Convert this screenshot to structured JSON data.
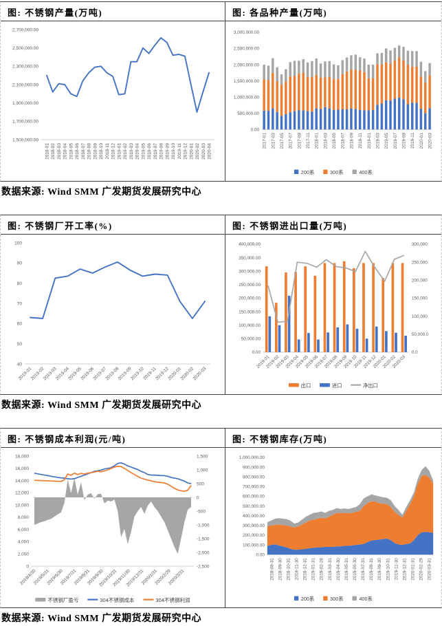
{
  "sections": [
    {
      "source": "数据来源: Wind SMM 广发期货发展研究中心"
    },
    {
      "source": "数据来源: Wind SMM 广发期货发展研究中心"
    },
    {
      "source": "数据来源: Wind SMM 广发期货发展研究中心"
    }
  ],
  "colors": {
    "blue": "#4472C4",
    "orange": "#ED7D31",
    "gray": "#A5A5A5"
  },
  "chart_data": [
    {
      "id": "production",
      "type": "line",
      "title": "图: 不锈钢产量(万吨)",
      "ylabel": "",
      "xlabel": "",
      "ylim": [
        1500000,
        2700000
      ],
      "yticks": [
        "2,700,000.00",
        "2,500,000.00",
        "2,300,000.00",
        "2,100,000.00",
        "1,900,000.00",
        "1,700,000.00",
        "1,500,000.00"
      ],
      "xticks": [
        "2018-01",
        "2018-02",
        "2018-03",
        "2018-04",
        "2018-05",
        "2018-06",
        "2018-07",
        "2018-08",
        "2018-09",
        "2018-10",
        "2018-11",
        "2018-12",
        "2019-01",
        "2019-02",
        "2019-03",
        "2019-04",
        "2019-05",
        "2019-06",
        "2019-07",
        "2019-08",
        "2019-09",
        "2019-10",
        "2019-11",
        "2019-12",
        "2020-01",
        "2020-02",
        "2020-03",
        "2020-04"
      ],
      "color": "#4472C4",
      "values": [
        2200000,
        2020000,
        2110000,
        2100000,
        2000000,
        1970000,
        2140000,
        2230000,
        2290000,
        2300000,
        2230000,
        2190000,
        1990000,
        2000000,
        2350000,
        2350000,
        2500000,
        2440000,
        2530000,
        2610000,
        2560000,
        2420000,
        2430000,
        2410000,
        2100000,
        1800000,
        2020000,
        2230000
      ]
    },
    {
      "id": "variety",
      "type": "stacked_bar",
      "title": "图: 各品种产量(万吨)",
      "ylim": [
        0,
        3000000
      ],
      "yticks": [
        "3,000,000.00",
        "2,500,000.00",
        "2,000,000.00",
        "1,500,000.00",
        "1,000,000.00",
        "500,000.00",
        "0.00"
      ],
      "categories": [
        "2017-01",
        "2017-02",
        "2017-03",
        "2017-04",
        "2017-05",
        "2017-06",
        "2017-07",
        "2017-08",
        "2017-09",
        "2017-10",
        "2017-11",
        "2017-12",
        "2018-01",
        "2018-02",
        "2018-03",
        "2018-04",
        "2018-05",
        "2018-06",
        "2018-07",
        "2018-08",
        "2018-09",
        "2018-10",
        "2018-11",
        "2018-12",
        "2019-01",
        "2019-02",
        "2019-03",
        "2019-04",
        "2019-05",
        "2019-06",
        "2019-07",
        "2019-08",
        "2019-09",
        "2019-10",
        "2019-11",
        "2019-12",
        "2020-01",
        "2020-02",
        "2020-03"
      ],
      "xticks": [
        "2017-01",
        "2017-03",
        "2017-05",
        "2017-07",
        "2017-09",
        "2017-11",
        "2018-01",
        "2018-03",
        "2018-05",
        "2018-07",
        "2018-09",
        "2018-11",
        "2019-01",
        "2019-03",
        "2019-05",
        "2019-07",
        "2019-09",
        "2019-11",
        "2020-01",
        "2020-03"
      ],
      "series": [
        {
          "name": "200系",
          "color": "#4472C4",
          "values": [
            580000,
            580000,
            650000,
            540000,
            420000,
            470000,
            530000,
            570000,
            590000,
            590000,
            570000,
            550000,
            650000,
            630000,
            690000,
            650000,
            600000,
            610000,
            620000,
            620000,
            650000,
            630000,
            600000,
            590000,
            590000,
            600000,
            760000,
            800000,
            900000,
            890000,
            950000,
            980000,
            930000,
            780000,
            830000,
            820000,
            640000,
            500000,
            660000
          ]
        },
        {
          "name": "300系",
          "color": "#ED7D31",
          "values": [
            970000,
            950000,
            1100000,
            950000,
            960000,
            1010000,
            1100000,
            1080000,
            1140000,
            1170000,
            1050000,
            1070000,
            1040000,
            970000,
            920000,
            970000,
            960000,
            950000,
            1090000,
            1170000,
            1200000,
            1210000,
            1220000,
            1180000,
            990000,
            980000,
            1250000,
            1210000,
            1170000,
            1140000,
            1180000,
            1250000,
            1200000,
            1220000,
            1110000,
            1120000,
            990000,
            950000,
            1010000
          ]
        },
        {
          "name": "400系",
          "color": "#A5A5A5",
          "values": [
            450000,
            440000,
            450000,
            430000,
            320000,
            380000,
            450000,
            470000,
            390000,
            410000,
            450000,
            490000,
            500000,
            440000,
            490000,
            490000,
            450000,
            420000,
            430000,
            430000,
            440000,
            470000,
            410000,
            420000,
            420000,
            420000,
            340000,
            350000,
            430000,
            410000,
            390000,
            360000,
            420000,
            430000,
            480000,
            480000,
            460000,
            350000,
            380000
          ]
        }
      ],
      "legend": [
        {
          "label": "200系",
          "color": "#4472C4",
          "swatch": "square"
        },
        {
          "label": "300系",
          "color": "#ED7D31",
          "swatch": "square"
        },
        {
          "label": "400系",
          "color": "#A5A5A5",
          "swatch": "square"
        }
      ]
    },
    {
      "id": "operating",
      "type": "line",
      "title": "图: 不锈钢厂开工率(%)",
      "ylim": [
        40,
        100
      ],
      "yticks": [
        "100",
        "90",
        "80",
        "70",
        "60",
        "50",
        "40"
      ],
      "xticks": [
        "2019-01",
        "2019-02",
        "2019-03",
        "2019-04",
        "2019-05",
        "2019-06",
        "2019-07",
        "2019-08",
        "2019-09",
        "2019-10",
        "2019-11",
        "2019-12",
        "2020-01",
        "2020-02",
        "2020-03"
      ],
      "color": "#4472C4",
      "values": [
        63,
        62.5,
        82.5,
        83.5,
        87,
        85,
        88,
        90.5,
        86.5,
        83.5,
        84.5,
        84,
        71,
        62.5,
        71
      ]
    },
    {
      "id": "trade",
      "type": "bar_line",
      "title": "图: 不锈钢进出口量(万吨)",
      "ylim": [
        0,
        400000
      ],
      "ylim_right": [
        0,
        300000
      ],
      "yticks": [
        "400,000.00",
        "350,000.00",
        "300,000.00",
        "250,000.00",
        "200,000.00",
        "150,000.00",
        "100,000.00",
        "50,000.00",
        "0.00"
      ],
      "yticks_right": [
        "300,000",
        "250,000",
        "200,000",
        "150,000",
        "100,000",
        "50,000.0",
        "0.0"
      ],
      "categories": [
        "2019-01",
        "2019-02",
        "2019-03",
        "2019-04",
        "2019-05",
        "2019-06",
        "2019-07",
        "2019-08",
        "2019-09",
        "2019-10",
        "2019-11",
        "2019-12",
        "2020-01",
        "2020-02",
        "2020-03"
      ],
      "xticks": [
        "2019-01",
        "2019-02",
        "2019-03",
        "2019-04",
        "2019-05",
        "2019-06",
        "2019-07",
        "2019-08",
        "2019-09",
        "2019-10",
        "2019-11",
        "2019-12",
        "2020-01",
        "2020-02",
        "2020-03"
      ],
      "bar_series": [
        {
          "name": "出口",
          "color": "#ED7D31",
          "values": [
            318000,
            183000,
            295000,
            297000,
            318000,
            283000,
            330000,
            330000,
            337000,
            311000,
            330000,
            330000,
            275000,
            330000,
            330000
          ]
        },
        {
          "name": "进口",
          "color": "#4472C4",
          "values": [
            133000,
            100000,
            209000,
            47000,
            71000,
            47000,
            73000,
            92000,
            103000,
            87000,
            50000,
            95000,
            78000,
            72000,
            61000
          ]
        }
      ],
      "line_series": {
        "name": "净出口",
        "color": "#A5A5A5",
        "axis": "right",
        "values": [
          185000,
          83000,
          86000,
          250000,
          247000,
          236000,
          257000,
          238000,
          234000,
          224000,
          280000,
          235000,
          197000,
          258000,
          269000
        ]
      },
      "legend": [
        {
          "label": "出口",
          "color": "#ED7D31",
          "swatch": "bar"
        },
        {
          "label": "进口",
          "color": "#4472C4",
          "swatch": "bar"
        },
        {
          "label": "净出口",
          "color": "#A5A5A5",
          "swatch": "line"
        }
      ]
    },
    {
      "id": "costprofit",
      "type": "area_lines",
      "title": "图: 不锈钢成本利润(元/吨)",
      "ylim": [
        0,
        18000
      ],
      "ylim_right": [
        -2500,
        1500
      ],
      "yticks": [
        "18,000",
        "16,000",
        "14,000",
        "12,000",
        "10,000",
        "8,000",
        "6,000",
        "4,000",
        "2,000",
        "0"
      ],
      "yticks_right": [
        "1,500",
        "1,000",
        "500",
        "0",
        "-500",
        "-1,000",
        "-1,500",
        "-2,000",
        "-2,500"
      ],
      "xticks": [
        "2019/4/30",
        "2019/5/31",
        "2019/6/30",
        "2019/7/31",
        "2019/8/31",
        "2019/9/30",
        "2019/10/31",
        "2019/11/30",
        "2019/12/31",
        "2020/1/31",
        "2020/2/29",
        "2020/3/31"
      ],
      "area_series": {
        "name": "不锈钢厂盈亏",
        "color": "#A6A6A6",
        "axis": "right",
        "values": [
          -1000,
          -950,
          -900,
          -870,
          -820,
          -780,
          -700,
          -620,
          -550,
          -200,
          650,
          150,
          700,
          100,
          550,
          -100,
          100,
          150,
          -50,
          120,
          130,
          -220,
          -120,
          -150,
          -80,
          -500,
          -1450,
          -1150,
          -1700,
          -1250,
          -700,
          -500,
          -350,
          -600,
          -300,
          -150,
          -350,
          -500,
          -700,
          -900,
          -1200,
          -1500,
          -1800,
          -2050,
          -1500,
          -900,
          -450,
          -350
        ]
      },
      "line_series": [
        {
          "name": "304不锈钢成本",
          "color": "#4472C4",
          "axis": "left",
          "values": [
            15200,
            15100,
            15000,
            14900,
            14800,
            14700,
            14600,
            14500,
            14450,
            14400,
            14300,
            14250,
            14300,
            14500,
            14700,
            14900,
            15100,
            15300,
            15500,
            15600,
            15700,
            15900,
            16000,
            16100,
            16400,
            16800,
            16900,
            16700,
            16400,
            16200,
            16000,
            15800,
            15500,
            15300,
            15000,
            14900,
            14900,
            14850,
            14800,
            14800,
            14700,
            14500,
            14400,
            14300,
            14100,
            13900,
            13600,
            13500
          ]
        },
        {
          "name": "304不锈钢利润",
          "color": "#ED7D31",
          "axis": "right",
          "values": [
            620,
            615,
            610,
            605,
            600,
            595,
            590,
            585,
            580,
            640,
            850,
            800,
            880,
            830,
            870,
            850,
            880,
            900,
            920,
            950,
            930,
            960,
            1000,
            1050,
            1100,
            1130,
            1120,
            1050,
            980,
            900,
            830,
            760,
            700,
            660,
            630,
            600,
            570,
            550,
            540,
            520,
            480,
            400,
            330,
            270,
            240,
            220,
            260,
            430
          ]
        }
      ],
      "legend": [
        {
          "label": "不锈钢厂盈亏",
          "color": "#A6A6A6",
          "swatch": "bar"
        },
        {
          "label": "304不锈钢成本",
          "color": "#4472C4",
          "swatch": "line"
        },
        {
          "label": "304不锈钢利润",
          "color": "#ED7D31",
          "swatch": "line"
        }
      ]
    },
    {
      "id": "inventory",
      "type": "stacked_area",
      "title": "图: 不锈钢库存(万吨)",
      "ylim": [
        0,
        1000000
      ],
      "yticks": [
        "1,000,000.00",
        "900,000.00",
        "800,000.00",
        "700,000.00",
        "600,000.00",
        "500,000.00",
        "400,000.00",
        "300,000.00",
        "200,000.00",
        "100,000.00",
        "0.00"
      ],
      "xticks": [
        "2018-08-31",
        "2018-09-30",
        "2018-10-31",
        "2018-11-30",
        "2018-12-31",
        "2019-01-31",
        "2019-02-28",
        "2019-03-31",
        "2019-04-30",
        "2019-05-31",
        "2019-06-30",
        "2019-07-31",
        "2019-08-31",
        "2019-09-30",
        "2019-10-31",
        "2019-11-30",
        "2019-12-31",
        "2020-01-31",
        "2020-02-29",
        "2020-03-31"
      ],
      "series": [
        {
          "name": "200系",
          "color": "#4472C4",
          "values": [
            90000,
            100000,
            105000,
            95000,
            85000,
            75000,
            60000,
            50000,
            50000,
            55000,
            60000,
            65000,
            70000,
            75000,
            75000,
            80000,
            80000,
            80000,
            85000,
            85000,
            90000,
            90000,
            95000,
            100000,
            105000,
            110000,
            130000,
            145000,
            150000,
            155000,
            160000,
            165000,
            150000,
            120000,
            105000,
            100000,
            110000,
            115000,
            150000,
            200000,
            230000,
            235000,
            230000,
            225000
          ]
        },
        {
          "name": "300系",
          "color": "#ED7D31",
          "values": [
            200000,
            200000,
            200000,
            215000,
            220000,
            225000,
            230000,
            230000,
            240000,
            255000,
            270000,
            285000,
            290000,
            295000,
            305000,
            295000,
            310000,
            330000,
            345000,
            340000,
            340000,
            335000,
            335000,
            340000,
            345000,
            390000,
            400000,
            405000,
            395000,
            375000,
            365000,
            355000,
            340000,
            320000,
            305000,
            280000,
            340000,
            405000,
            450000,
            530000,
            580000,
            585000,
            560000,
            505000
          ]
        },
        {
          "name": "400系",
          "color": "#A5A5A5",
          "values": [
            45000,
            50000,
            65000,
            65000,
            65000,
            65000,
            60000,
            40000,
            40000,
            50000,
            60000,
            60000,
            70000,
            65000,
            65000,
            55000,
            60000,
            50000,
            50000,
            45000,
            45000,
            45000,
            50000,
            50000,
            70000,
            80000,
            70000,
            70000,
            65000,
            70000,
            65000,
            65000,
            70000,
            60000,
            50000,
            30000,
            40000,
            40000,
            40000,
            50000,
            60000,
            90000,
            70000,
            30000
          ]
        }
      ],
      "legend": [
        {
          "label": "200系",
          "color": "#4472C4",
          "swatch": "square"
        },
        {
          "label": "300系",
          "color": "#ED7D31",
          "swatch": "square"
        },
        {
          "label": "400系",
          "color": "#A5A5A5",
          "swatch": "square"
        }
      ]
    }
  ]
}
